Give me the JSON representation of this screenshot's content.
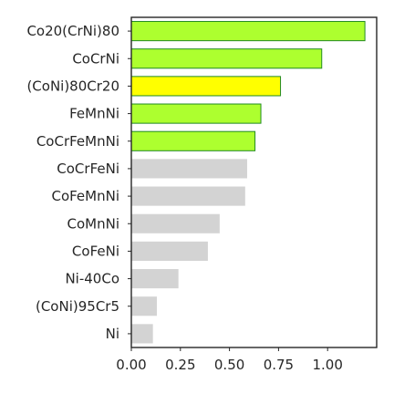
{
  "chart_data": {
    "type": "bar",
    "orientation": "horizontal",
    "title": "",
    "xlabel": "",
    "ylabel": "",
    "categories": [
      "Co20(CrNi)80",
      "CoCrNi",
      "(CoNi)80Cr20",
      "FeMnNi",
      "CoCrFeMnNi",
      "CoCrFeNi",
      "CoFeMnNi",
      "CoMnNi",
      "CoFeNi",
      "Ni-40Co",
      "(CoNi)95Cr5",
      "Ni"
    ],
    "values": [
      1.19,
      0.97,
      0.76,
      0.66,
      0.63,
      0.59,
      0.58,
      0.45,
      0.39,
      0.24,
      0.13,
      0.11
    ],
    "bar_colors": [
      "#adff2f",
      "#adff2f",
      "#ffff00",
      "#adff2f",
      "#adff2f",
      "#d3d3d3",
      "#d3d3d3",
      "#d3d3d3",
      "#d3d3d3",
      "#d3d3d3",
      "#d3d3d3",
      "#d3d3d3"
    ],
    "edge_colors": [
      "#228b22",
      "#228b22",
      "#228b22",
      "#228b22",
      "#228b22",
      "none",
      "none",
      "none",
      "none",
      "none",
      "none",
      "none"
    ],
    "xlim": [
      0,
      1.25
    ],
    "xticks": [
      0.0,
      0.25,
      0.5,
      0.75,
      1.0
    ],
    "xtick_labels": [
      "0.00",
      "0.25",
      "0.50",
      "0.75",
      "1.00"
    ],
    "grid": false,
    "legend": "none"
  }
}
